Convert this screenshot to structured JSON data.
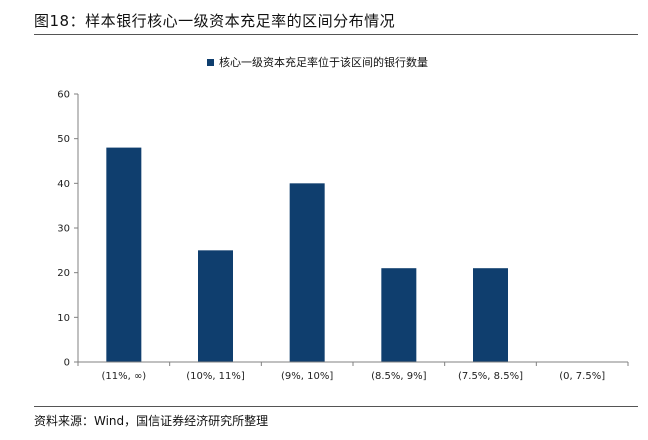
{
  "figure": {
    "title": "图18：样本银行核心一级资本充足率的区间分布情况",
    "source": "资料来源：Wind，国信证券经济研究所整理"
  },
  "colors": {
    "bar": "#0f3e6e",
    "axis": "#808080"
  },
  "chart_data": {
    "type": "bar",
    "categories": [
      "(11%, ∞)",
      "(10%, 11%]",
      "(9%, 10%]",
      "(8.5%, 9%]",
      "(7.5%, 8.5%]",
      "(0, 7.5%]"
    ],
    "series": [
      {
        "name": "核心一级资本充足率位于该区间的银行数量",
        "values": [
          48,
          25,
          40,
          21,
          21,
          0
        ]
      }
    ],
    "yticks": [
      0,
      10,
      20,
      30,
      40,
      50,
      60
    ],
    "ylim": [
      0,
      60
    ],
    "legend_position": "top-center",
    "grid": false
  }
}
